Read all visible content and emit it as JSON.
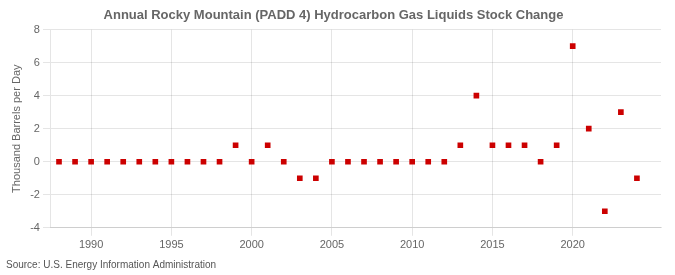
{
  "chart_data": {
    "type": "scatter",
    "title": "Annual Rocky Mountain (PADD 4) Hydrocarbon Gas Liquids Stock Change",
    "ylabel": "Thousand Barrels per Day",
    "annotations": [
      "Source: U.S. Energy Information Administration"
    ],
    "x": [
      1988,
      1989,
      1990,
      1991,
      1992,
      1993,
      1994,
      1995,
      1996,
      1997,
      1998,
      1999,
      2000,
      2001,
      2002,
      2003,
      2004,
      2005,
      2006,
      2007,
      2008,
      2009,
      2010,
      2011,
      2012,
      2013,
      2014,
      2015,
      2016,
      2017,
      2018,
      2019,
      2020,
      2021,
      2022,
      2023,
      2024
    ],
    "values": [
      0,
      0,
      0,
      0,
      0,
      0,
      0,
      0,
      0,
      0,
      0,
      1,
      0,
      1,
      0,
      -1,
      -1,
      0,
      0,
      0,
      0,
      0,
      0,
      0,
      0,
      1,
      4,
      1,
      1,
      1,
      0,
      1,
      7,
      2,
      -3,
      3,
      -1
    ],
    "color": "#cc0000",
    "marker": "square",
    "xlim": [
      1987.5,
      2025.5
    ],
    "xticks": [
      1990,
      1995,
      2000,
      2005,
      2010,
      2015,
      2020
    ],
    "ylim": [
      -4,
      8
    ],
    "yticks": [
      -4,
      -2,
      0,
      2,
      4,
      6,
      8
    ],
    "grid": true
  }
}
